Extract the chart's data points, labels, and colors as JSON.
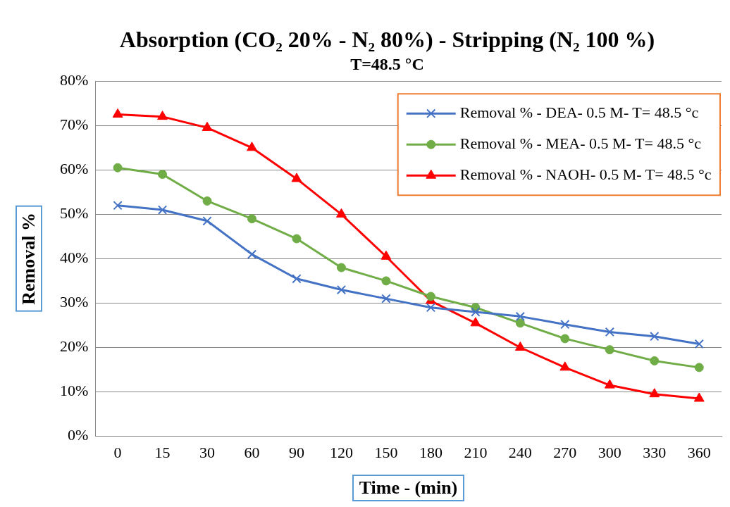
{
  "chart_data": {
    "type": "line",
    "title": "Absorption (CO₂ 20% - N₂ 80%) - Stripping (N₂ 100 %)",
    "subtitle": "T=48.5 °C",
    "xlabel": "Time - (min)",
    "ylabel": "Removal %",
    "categories": [
      "0",
      "15",
      "30",
      "60",
      "90",
      "120",
      "150",
      "180",
      "210",
      "240",
      "270",
      "300",
      "330",
      "360"
    ],
    "series": [
      {
        "name": "Removal % - DEA- 0.5 M- T= 48.5 °c",
        "color": "#4472c4",
        "marker": "cross",
        "values": [
          52,
          51,
          48.5,
          41,
          35.5,
          33,
          31,
          29,
          28,
          27,
          25.2,
          23.5,
          22.5,
          20.8
        ]
      },
      {
        "name": "Removal % - MEA- 0.5 M- T= 48.5 °c",
        "color": "#70ad47",
        "marker": "circle",
        "values": [
          60.5,
          59,
          53,
          49,
          44.5,
          38,
          35,
          31.5,
          29,
          25.5,
          22,
          19.5,
          17,
          15.5
        ]
      },
      {
        "name": "Removal % - NAOH- 0.5 M- T= 48.5 °c",
        "color": "#ff0000",
        "marker": "triangle",
        "values": [
          72.5,
          72,
          69.5,
          65,
          58,
          50,
          40.5,
          30.5,
          25.5,
          20,
          15.5,
          11.5,
          9.5,
          8.5
        ]
      }
    ],
    "ylim": [
      0,
      80
    ],
    "yticks": [
      {
        "value": 0,
        "label": "0%"
      },
      {
        "value": 10,
        "label": "10%"
      },
      {
        "value": 20,
        "label": "20%"
      },
      {
        "value": 30,
        "label": "30%"
      },
      {
        "value": 40,
        "label": "40%"
      },
      {
        "value": 50,
        "label": "50%"
      },
      {
        "value": 60,
        "label": "60%"
      },
      {
        "value": 70,
        "label": "70%"
      },
      {
        "value": 80,
        "label": "80%"
      }
    ],
    "grid": "y",
    "legend": "top right",
    "line_style": "solid"
  }
}
